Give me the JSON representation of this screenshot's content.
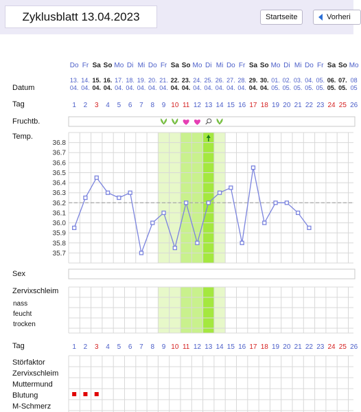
{
  "header": {
    "title": "Zyklusblatt 13.04.2023",
    "home_button": "Startseite",
    "prev_button": "Vorheri"
  },
  "labels": {
    "date": "Datum",
    "day": "Tag",
    "fertility": "Fruchtb.",
    "temp": "Temp.",
    "sex": "Sex",
    "cervical_mucus": "Zervixschleim",
    "mucus_levels": [
      "nass",
      "feucht",
      "trocken"
    ],
    "day2": "Tag",
    "extra_rows": [
      "Störfaktor",
      "Zervixschleim",
      "Muttermund",
      "Blutung",
      "M-Schmerz"
    ]
  },
  "days": {
    "weekdays": [
      "Do",
      "Fr",
      "Sa",
      "So",
      "Mo",
      "Di",
      "Mi",
      "Do",
      "Fr",
      "Sa",
      "So",
      "Mo",
      "Di",
      "Mi",
      "Do",
      "Fr",
      "Sa",
      "So",
      "Mo",
      "Di",
      "Mi",
      "Do",
      "Fr",
      "Sa",
      "So",
      "Mo"
    ],
    "dates_top": [
      "13.",
      "14.",
      "15.",
      "16.",
      "17.",
      "18.",
      "19.",
      "20.",
      "21.",
      "22.",
      "23.",
      "24.",
      "25.",
      "26.",
      "27.",
      "28.",
      "29.",
      "30.",
      "01.",
      "02.",
      "03.",
      "04.",
      "05.",
      "06.",
      "07.",
      "08"
    ],
    "dates_bottom": [
      "04.",
      "04.",
      "04.",
      "04.",
      "04.",
      "04.",
      "04.",
      "04.",
      "04.",
      "04.",
      "04.",
      "04.",
      "04.",
      "04.",
      "04.",
      "04.",
      "04.",
      "04.",
      "05.",
      "05.",
      "05.",
      "05.",
      "05.",
      "05.",
      "05.",
      "05"
    ],
    "numbers": [
      "1",
      "2",
      "3",
      "4",
      "5",
      "6",
      "7",
      "8",
      "9",
      "10",
      "11",
      "12",
      "13",
      "14",
      "15",
      "16",
      "17",
      "18",
      "19",
      "20",
      "21",
      "22",
      "23",
      "24",
      "25",
      "26"
    ],
    "weekend_indices": [
      2,
      3,
      9,
      10,
      16,
      17,
      23,
      24
    ],
    "red_indices": [
      2,
      9,
      10,
      16,
      17,
      23,
      24
    ]
  },
  "fertility_icons": [
    {
      "day": 9,
      "type": "sprout-icon"
    },
    {
      "day": 10,
      "type": "sprout-icon"
    },
    {
      "day": 11,
      "type": "heart-icon"
    },
    {
      "day": 12,
      "type": "heart-icon"
    },
    {
      "day": 13,
      "type": "magnifier-icon"
    },
    {
      "day": 14,
      "type": "sprout-icon"
    }
  ],
  "temperature": {
    "ticks": [
      "36.8",
      "36.7",
      "36.6",
      "36.5",
      "36.4",
      "36.3",
      "36.2",
      "36.1",
      "36.0",
      "35.9",
      "35.8",
      "35.7"
    ],
    "range": [
      35.6,
      36.9
    ],
    "coverline": 36.2,
    "values": [
      35.95,
      36.25,
      36.45,
      36.3,
      36.25,
      36.3,
      35.7,
      36.0,
      36.1,
      35.75,
      36.2,
      35.8,
      36.2,
      36.3,
      36.35,
      35.8,
      36.55,
      36.0,
      36.2,
      36.2,
      36.1,
      35.95
    ],
    "ovulation_day": 13
  },
  "fertile_window": {
    "light": [
      9,
      14
    ],
    "medium": [
      11,
      13
    ],
    "strong": [
      13,
      13
    ]
  },
  "bleeding_days": [
    1,
    2,
    3
  ],
  "colors": {
    "blue_text": "#4b5ec8",
    "red_text": "#d41f1f",
    "line": "#7b84de",
    "grid": "#d8d8d8",
    "fertile_light": "#e7f8c9",
    "fertile_medium": "#c9f18d",
    "fertile_strong": "#a4e83f",
    "bleeding": "#e00000",
    "coverline": "#9a9a9a"
  }
}
